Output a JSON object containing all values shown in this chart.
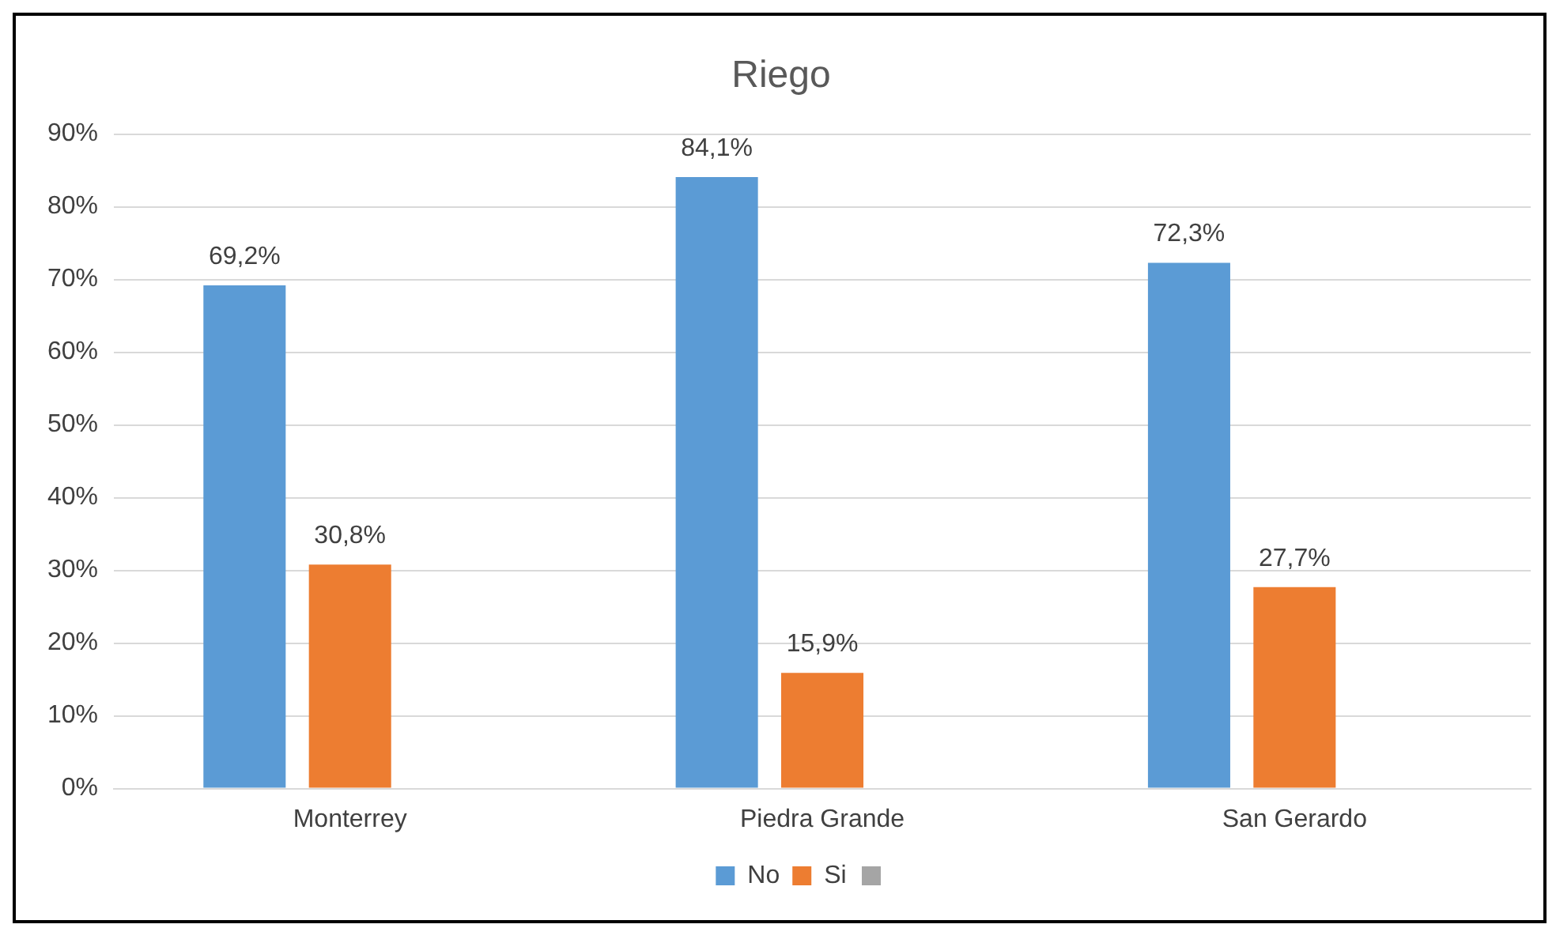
{
  "chart_data": {
    "type": "bar",
    "title": "Riego",
    "categories": [
      "Monterrey",
      "Piedra Grande",
      "San Gerardo"
    ],
    "series": [
      {
        "name": "No",
        "color": "#5b9bd5",
        "values": [
          69.2,
          84.1,
          72.3
        ],
        "value_labels": [
          "69,2%",
          "84,1%",
          "72,3%"
        ]
      },
      {
        "name": "Si",
        "color": "#ed7d31",
        "values": [
          30.8,
          15.9,
          27.7
        ],
        "value_labels": [
          "30,8%",
          "15,9%",
          "27,7%"
        ]
      },
      {
        "color": "#a5a5a5",
        "values": [
          null,
          null,
          null
        ]
      }
    ],
    "ylim": [
      0,
      90
    ],
    "yticks": [
      {
        "value": 0,
        "label": "0%"
      },
      {
        "value": 10,
        "label": "10%"
      },
      {
        "value": 20,
        "label": "20%"
      },
      {
        "value": 30,
        "label": "30%"
      },
      {
        "value": 40,
        "label": "40%"
      },
      {
        "value": 50,
        "label": "50%"
      },
      {
        "value": 60,
        "label": "60%"
      },
      {
        "value": 70,
        "label": "70%"
      },
      {
        "value": 80,
        "label": "80%"
      },
      {
        "value": 90,
        "label": "90%"
      }
    ],
    "grid": "y",
    "legend": "bottom"
  }
}
